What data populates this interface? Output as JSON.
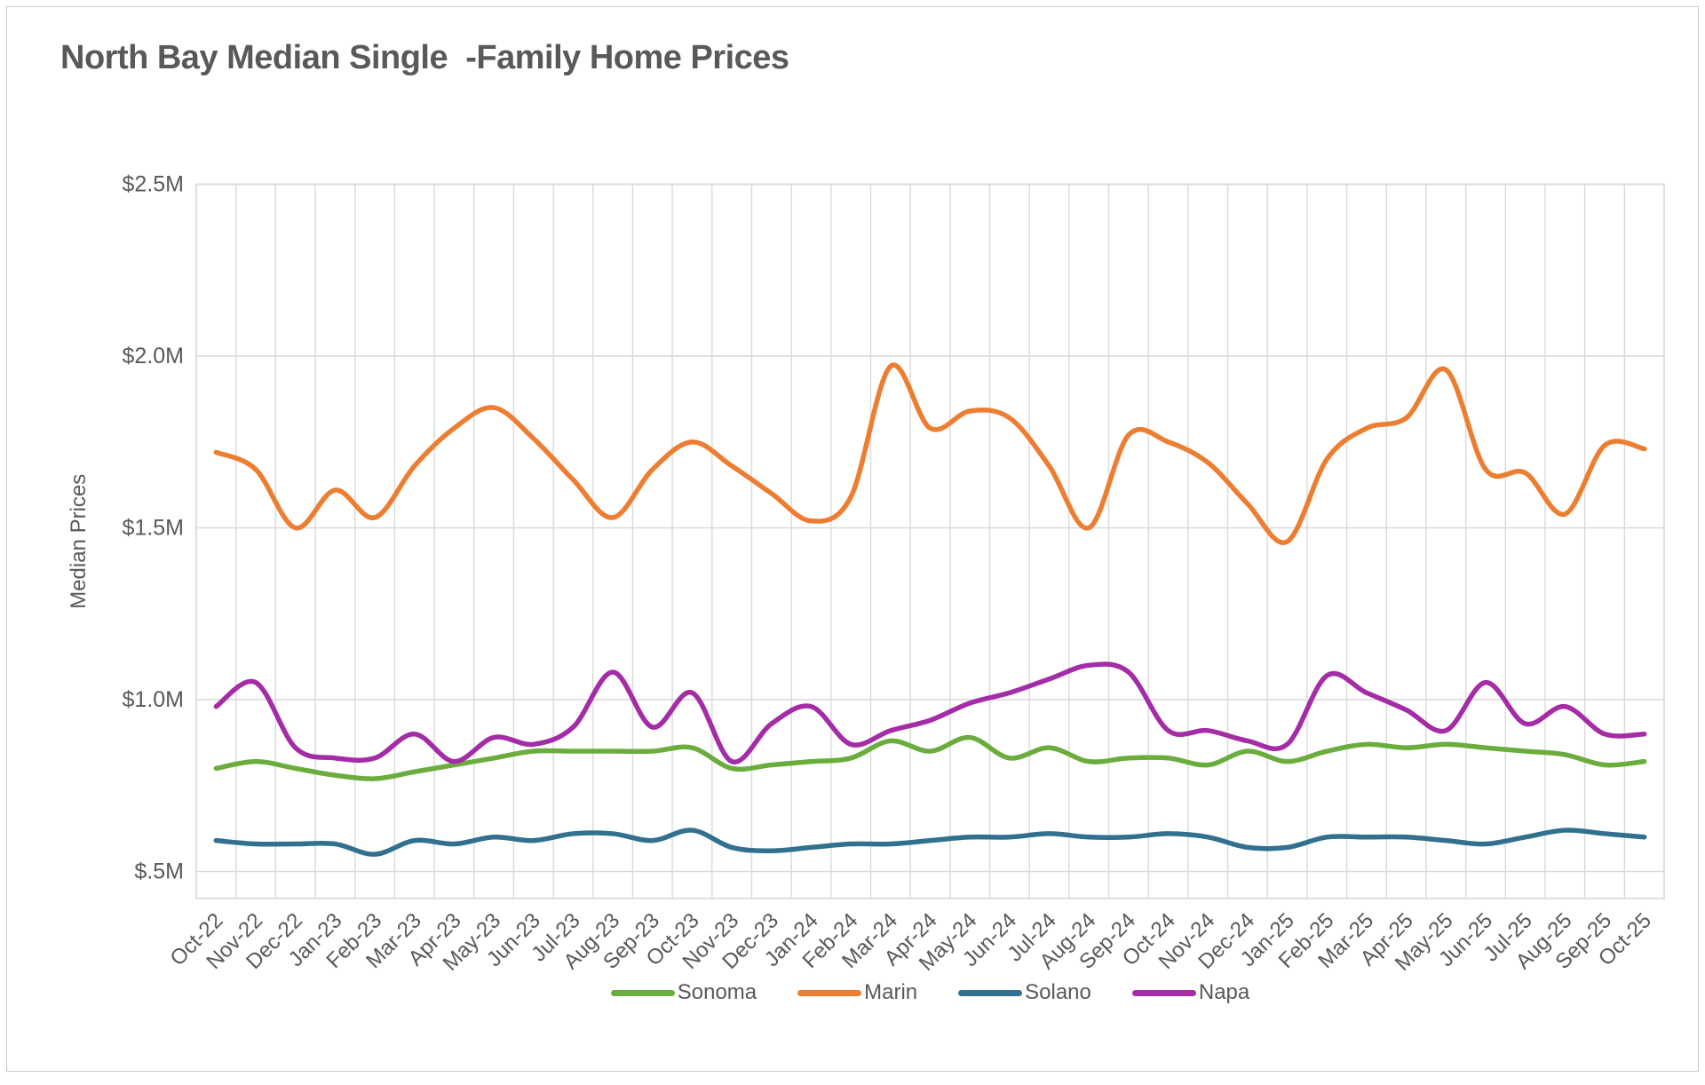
{
  "title": "North Bay Median Single  -Family Home Prices",
  "chart_data": {
    "type": "line",
    "title": "North Bay Median Single  -Family Home Prices",
    "xlabel": "",
    "ylabel": "Median Prices",
    "units": "millions of dollars",
    "ylim": [
      0.42,
      2.5
    ],
    "grid": true,
    "legend_position": "bottom",
    "axis_text_color": "#595959",
    "gridline_color": "#d9d9d9",
    "y_ticks": [
      {
        "label": "$2.5M",
        "value": 2.5
      },
      {
        "label": "$2.0M",
        "value": 2.0
      },
      {
        "label": "$1.5M",
        "value": 1.5
      },
      {
        "label": "$1.0M",
        "value": 1.0
      },
      {
        "label": "$.5M",
        "value": 0.5
      }
    ],
    "categories": [
      "Oct-22",
      "Nov-22",
      "Dec-22",
      "Jan-23",
      "Feb-23",
      "Mar-23",
      "Apr-23",
      "May-23",
      "Jun-23",
      "Jul-23",
      "Aug-23",
      "Sep-23",
      "Oct-23",
      "Nov-23",
      "Dec-23",
      "Jan-24",
      "Feb-24",
      "Mar-24",
      "Apr-24",
      "May-24",
      "Jun-24",
      "Jul-24",
      "Aug-24",
      "Sep-24",
      "Oct-24",
      "Nov-24",
      "Dec-24",
      "Jan-25",
      "Feb-25",
      "Mar-25",
      "Apr-25",
      "May-25",
      "Jun-25",
      "Jul-25",
      "Aug-25",
      "Sep-25",
      "Oct-25"
    ],
    "series": [
      {
        "name": "Sonoma",
        "color": "#6bad3d",
        "values": [
          0.8,
          0.82,
          0.8,
          0.78,
          0.77,
          0.79,
          0.81,
          0.83,
          0.85,
          0.85,
          0.85,
          0.85,
          0.86,
          0.8,
          0.81,
          0.82,
          0.83,
          0.88,
          0.85,
          0.89,
          0.83,
          0.86,
          0.82,
          0.83,
          0.83,
          0.81,
          0.85,
          0.82,
          0.85,
          0.87,
          0.86,
          0.87,
          0.86,
          0.85,
          0.84,
          0.81,
          0.82
        ]
      },
      {
        "name": "Marin",
        "color": "#ed7d31",
        "values": [
          1.72,
          1.67,
          1.5,
          1.61,
          1.53,
          1.68,
          1.79,
          1.85,
          1.76,
          1.64,
          1.53,
          1.67,
          1.75,
          1.68,
          1.6,
          1.52,
          1.59,
          1.97,
          1.79,
          1.84,
          1.82,
          1.68,
          1.5,
          1.77,
          1.75,
          1.69,
          1.57,
          1.46,
          1.7,
          1.79,
          1.82,
          1.96,
          1.67,
          1.66,
          1.54,
          1.74,
          1.73
        ]
      },
      {
        "name": "Solano",
        "color": "#31708f",
        "values": [
          0.59,
          0.58,
          0.58,
          0.58,
          0.55,
          0.59,
          0.58,
          0.6,
          0.59,
          0.61,
          0.61,
          0.59,
          0.62,
          0.57,
          0.56,
          0.57,
          0.58,
          0.58,
          0.59,
          0.6,
          0.6,
          0.61,
          0.6,
          0.6,
          0.61,
          0.6,
          0.57,
          0.57,
          0.6,
          0.6,
          0.6,
          0.59,
          0.58,
          0.6,
          0.62,
          0.61,
          0.6
        ]
      },
      {
        "name": "Napa",
        "color": "#a42ca6",
        "values": [
          0.98,
          1.05,
          0.86,
          0.83,
          0.83,
          0.9,
          0.82,
          0.89,
          0.87,
          0.92,
          1.08,
          0.92,
          1.02,
          0.82,
          0.93,
          0.98,
          0.87,
          0.91,
          0.94,
          0.99,
          1.02,
          1.06,
          1.1,
          1.08,
          0.91,
          0.91,
          0.88,
          0.87,
          1.07,
          1.02,
          0.97,
          0.91,
          1.05,
          0.93,
          0.98,
          0.9,
          0.9
        ]
      }
    ]
  }
}
